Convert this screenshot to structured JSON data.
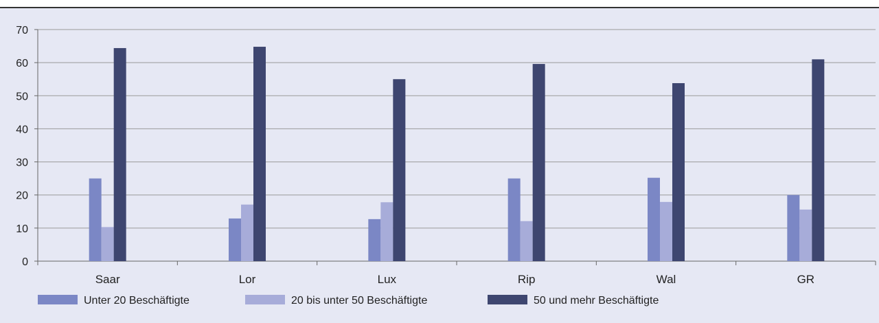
{
  "colors": {
    "background": "#e6e8f4",
    "top_rule": "#333333",
    "grid": "#9a9a9a",
    "axis": "#666666"
  },
  "chart_data": {
    "type": "bar",
    "categories": [
      "Saar",
      "Lor",
      "Lux",
      "Rip",
      "Wal",
      "GR"
    ],
    "series": [
      {
        "name": "Unter 20 Beschäftigte",
        "color": "#7b87c5",
        "values": [
          25.0,
          12.9,
          12.7,
          25.0,
          25.2,
          20.0
        ]
      },
      {
        "name": "20 bis unter 50 Beschäftigte",
        "color": "#a7acd9",
        "values": [
          10.3,
          17.1,
          17.8,
          12.1,
          17.9,
          15.6
        ]
      },
      {
        "name": "50 und mehr Beschäftigte",
        "color": "#3e4670",
        "values": [
          64.4,
          64.8,
          55.0,
          59.6,
          53.8,
          61.0
        ]
      }
    ],
    "y_ticks": [
      "0",
      "10",
      "20",
      "30",
      "40",
      "50",
      "60",
      "70"
    ],
    "ylim": [
      0,
      70
    ],
    "grid": true,
    "legend_position": "bottom"
  }
}
